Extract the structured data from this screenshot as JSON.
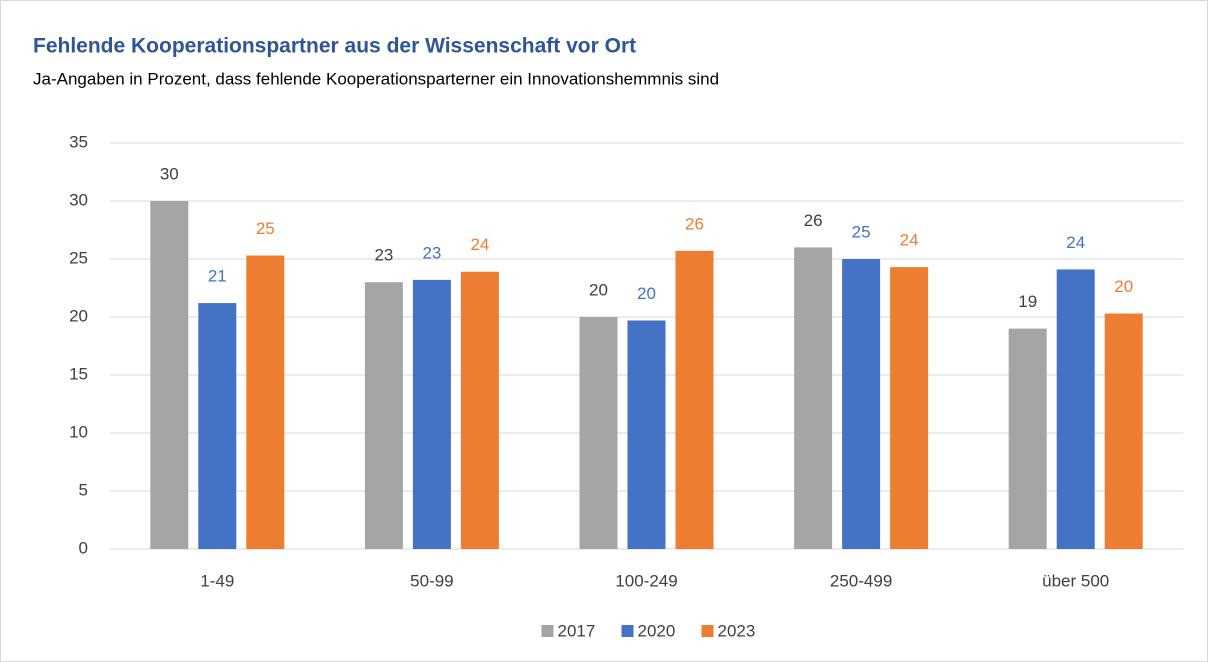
{
  "chart_data": {
    "type": "bar",
    "title": "Fehlende Kooperationspartner aus der Wissenschaft vor Ort",
    "subtitle": "Ja-Angaben in Prozent, dass fehlende Kooperationsparterner ein Innovationshemmnis sind",
    "categories": [
      "1-49",
      "50-99",
      "100-249",
      "250-499",
      "über 500"
    ],
    "series": [
      {
        "name": "2017",
        "color": "#a5a5a5",
        "label_color": "#404040",
        "values": [
          30,
          23,
          20,
          26,
          19
        ],
        "value_labels": [
          "30",
          "23",
          "20",
          "26",
          "19"
        ]
      },
      {
        "name": "2020",
        "color": "#4472c4",
        "label_color": "#4472c4",
        "values": [
          21.2,
          23.2,
          19.7,
          25,
          24.1
        ],
        "value_labels": [
          "21",
          "23",
          "20",
          "25",
          "24"
        ]
      },
      {
        "name": "2023",
        "color": "#ed7d31",
        "label_color": "#ed7d31",
        "values": [
          25.3,
          23.9,
          25.7,
          24.3,
          20.3
        ],
        "value_labels": [
          "25",
          "24",
          "26",
          "24",
          "20"
        ]
      }
    ],
    "ylim": [
      0,
      35
    ],
    "yticks": [
      0,
      5,
      10,
      15,
      20,
      25,
      30,
      35
    ],
    "grid": true,
    "legend": "bottom"
  }
}
